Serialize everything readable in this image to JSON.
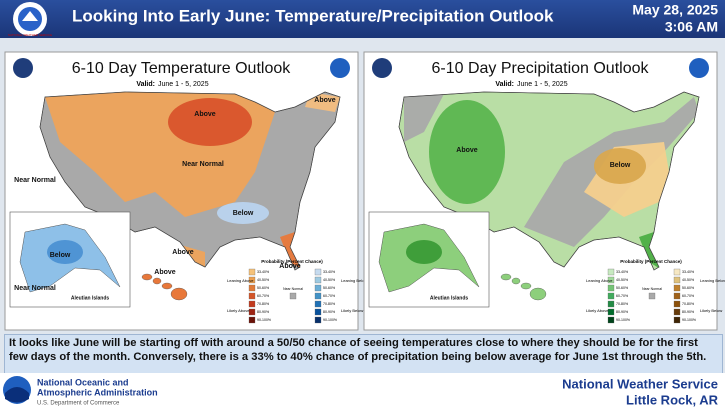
{
  "header": {
    "logo_text": "NATIONAL WEATHER SERVICE",
    "title": "Looking Into Early June: Temperature/Precipitation Outlook",
    "date": "May 28, 2025",
    "time": "3:06 AM"
  },
  "panels": [
    {
      "title": "6-10 Day Temperature Outlook",
      "valid_label": "Valid:",
      "valid_dates": "June 1 - 5, 2025",
      "labels": [
        "Above",
        "Above",
        "Near Normal",
        "Near Normal",
        "Below",
        "Above",
        "Above",
        "Below",
        "Near Normal",
        "Aleutian Islands",
        "Above"
      ],
      "legend": {
        "title": "Probability (Percent Chance)",
        "left_labels": [
          "Leaning Above",
          "Likely Above"
        ],
        "middle_label": "Near Normal",
        "right_labels": [
          "Leaning Below",
          "Likely Below"
        ],
        "ranges": [
          "33-40%",
          "40-50%",
          "50-60%",
          "60-70%",
          "70-80%",
          "80-90%",
          "90-100%"
        ]
      }
    },
    {
      "title": "6-10 Day Precipitation Outlook",
      "valid_label": "Valid:",
      "valid_dates": "June 1 - 5, 2025",
      "labels": [
        "Above",
        "Below",
        "Aleutian Islands"
      ],
      "legend": {
        "title": "Probability (Percent Chance)",
        "left_labels": [
          "Leaning Above",
          "Likely Above"
        ],
        "middle_label": "Near Normal",
        "right_labels": [
          "Leaning Below",
          "Likely Below"
        ],
        "ranges": [
          "33-40%",
          "40-50%",
          "50-60%",
          "60-70%",
          "70-80%",
          "80-90%",
          "90-100%"
        ]
      }
    }
  ],
  "description": "It looks like June will be starting off with around a 50/50 chance of seeing temperatures close to where they should be for the first few days of the month. Conversely, there is a 33% to 40% chance of precipitation being below average for June 1st through the 5th.",
  "footer": {
    "noaa_line1": "National Oceanic and",
    "noaa_line2": "Atmospheric Administration",
    "noaa_line3": "U.S. Department of Commerce",
    "office_line1": "National Weather Service",
    "office_line2": "Little Rock, AR"
  }
}
